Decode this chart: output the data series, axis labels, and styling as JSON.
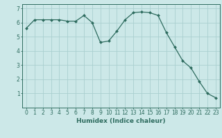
{
  "x": [
    0,
    1,
    2,
    3,
    4,
    5,
    6,
    7,
    8,
    9,
    10,
    11,
    12,
    13,
    14,
    15,
    16,
    17,
    18,
    19,
    20,
    21,
    22,
    23
  ],
  "y": [
    5.6,
    6.2,
    6.2,
    6.2,
    6.2,
    6.1,
    6.1,
    6.5,
    6.0,
    4.6,
    4.7,
    5.4,
    6.2,
    6.7,
    6.75,
    6.7,
    6.5,
    5.3,
    4.3,
    3.3,
    2.8,
    1.85,
    1.0,
    0.7
  ],
  "line_color": "#2d6b5e",
  "marker": "D",
  "marker_size": 2,
  "bg_color": "#cce8e8",
  "grid_color": "#aacfcf",
  "axis_color": "#2d6b5e",
  "xlabel": "Humidex (Indice chaleur)",
  "xlabel_fontsize": 6.5,
  "tick_fontsize": 5.5,
  "xlim": [
    -0.5,
    23.5
  ],
  "ylim": [
    0,
    7.3
  ],
  "yticks": [
    1,
    2,
    3,
    4,
    5,
    6,
    7
  ],
  "xticks": [
    0,
    1,
    2,
    3,
    4,
    5,
    6,
    7,
    8,
    9,
    10,
    11,
    12,
    13,
    14,
    15,
    16,
    17,
    18,
    19,
    20,
    21,
    22,
    23
  ]
}
